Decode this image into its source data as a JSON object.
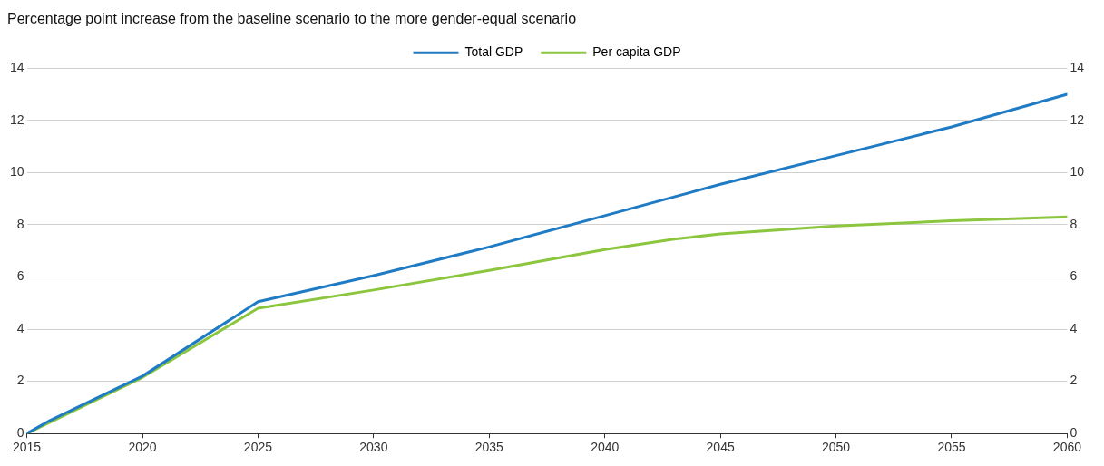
{
  "chart_data": {
    "type": "line",
    "title": "Percentage point increase from the baseline scenario to the more gender-equal scenario",
    "series": [
      {
        "name": "Total GDP",
        "color": "#1f7bc4",
        "x": [
          2015,
          2016,
          2020,
          2025,
          2030,
          2035,
          2040,
          2045,
          2050,
          2055,
          2060
        ],
        "values": [
          0,
          0.5,
          2.2,
          5.05,
          6.05,
          7.15,
          8.35,
          9.55,
          10.65,
          11.75,
          13.0
        ]
      },
      {
        "name": "Per capita GDP",
        "color": "#8cc63f",
        "x": [
          2015,
          2020,
          2025,
          2030,
          2035,
          2040,
          2043,
          2045,
          2050,
          2055,
          2060
        ],
        "values": [
          0,
          2.15,
          4.8,
          5.5,
          6.25,
          7.05,
          7.45,
          7.65,
          7.95,
          8.15,
          8.3
        ]
      }
    ],
    "xlim": [
      2015,
      2060
    ],
    "xticks": [
      2015,
      2020,
      2025,
      2030,
      2035,
      2040,
      2045,
      2050,
      2055,
      2060
    ],
    "ylim": [
      0,
      14
    ],
    "yticks": [
      0,
      2,
      4,
      6,
      8,
      10,
      12,
      14
    ],
    "y2lim": [
      0,
      14
    ],
    "y2ticks": [
      0,
      2,
      4,
      6,
      8,
      10,
      12,
      14
    ],
    "grid": "y",
    "legend": "top",
    "marker": "none",
    "line_style": "solid"
  }
}
